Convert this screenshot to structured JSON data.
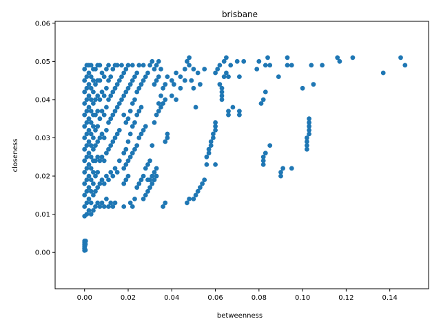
{
  "chart_data": {
    "type": "scatter",
    "title": "brisbane",
    "xlabel": "betweenness",
    "ylabel": "closeness",
    "xlim": [
      -0.0135,
      0.1578
    ],
    "ylim": [
      -0.0095,
      0.0605
    ],
    "xticks": [
      0.0,
      0.02,
      0.04,
      0.06,
      0.08,
      0.1,
      0.12,
      0.14
    ],
    "xtick_labels": [
      "0.00",
      "0.02",
      "0.04",
      "0.06",
      "0.08",
      "0.10",
      "0.12",
      "0.14"
    ],
    "yticks": [
      0.0,
      0.01,
      0.02,
      0.03,
      0.04,
      0.05,
      0.06
    ],
    "ytick_labels": [
      "0.00",
      "0.01",
      "0.02",
      "0.03",
      "0.04",
      "0.05",
      "0.06"
    ],
    "grid": false,
    "legend": false,
    "marker_color": "#1f77b4",
    "points": [
      [
        0.0,
        0.0005
      ],
      [
        0.0,
        0.001
      ],
      [
        0.0,
        0.0015
      ],
      [
        0.0,
        0.002
      ],
      [
        0.0,
        0.0025
      ],
      [
        0.0,
        0.003
      ],
      [
        0.0002,
        0.0008
      ],
      [
        0.0002,
        0.0018
      ],
      [
        0.0002,
        0.0028
      ],
      [
        0.0004,
        0.0006
      ],
      [
        0.0004,
        0.0022
      ],
      [
        0.0005,
        0.003
      ],
      [
        0.0,
        0.0095
      ],
      [
        0.0,
        0.012
      ],
      [
        0.0,
        0.015
      ],
      [
        0.0,
        0.018
      ],
      [
        0.0,
        0.021
      ],
      [
        0.0,
        0.024
      ],
      [
        0.0,
        0.027
      ],
      [
        0.0,
        0.03
      ],
      [
        0.0,
        0.033
      ],
      [
        0.0,
        0.036
      ],
      [
        0.0,
        0.039
      ],
      [
        0.0,
        0.042
      ],
      [
        0.0,
        0.045
      ],
      [
        0.0,
        0.048
      ],
      [
        0.001,
        0.01
      ],
      [
        0.001,
        0.013
      ],
      [
        0.001,
        0.016
      ],
      [
        0.001,
        0.019
      ],
      [
        0.001,
        0.022
      ],
      [
        0.001,
        0.025
      ],
      [
        0.001,
        0.028
      ],
      [
        0.001,
        0.031
      ],
      [
        0.001,
        0.034
      ],
      [
        0.001,
        0.037
      ],
      [
        0.001,
        0.04
      ],
      [
        0.001,
        0.043
      ],
      [
        0.001,
        0.046
      ],
      [
        0.001,
        0.049
      ],
      [
        0.002,
        0.011
      ],
      [
        0.002,
        0.014
      ],
      [
        0.002,
        0.017
      ],
      [
        0.002,
        0.02
      ],
      [
        0.002,
        0.023
      ],
      [
        0.002,
        0.026
      ],
      [
        0.002,
        0.029
      ],
      [
        0.002,
        0.032
      ],
      [
        0.002,
        0.035
      ],
      [
        0.002,
        0.038
      ],
      [
        0.002,
        0.041
      ],
      [
        0.002,
        0.044
      ],
      [
        0.002,
        0.047
      ],
      [
        0.002,
        0.049
      ],
      [
        0.003,
        0.01
      ],
      [
        0.003,
        0.013
      ],
      [
        0.003,
        0.016
      ],
      [
        0.003,
        0.019
      ],
      [
        0.003,
        0.022
      ],
      [
        0.003,
        0.025
      ],
      [
        0.003,
        0.028
      ],
      [
        0.003,
        0.031
      ],
      [
        0.003,
        0.034
      ],
      [
        0.003,
        0.037
      ],
      [
        0.003,
        0.04
      ],
      [
        0.003,
        0.043
      ],
      [
        0.003,
        0.046
      ],
      [
        0.003,
        0.049
      ],
      [
        0.004,
        0.011
      ],
      [
        0.004,
        0.015
      ],
      [
        0.004,
        0.018
      ],
      [
        0.004,
        0.021
      ],
      [
        0.004,
        0.024
      ],
      [
        0.004,
        0.027
      ],
      [
        0.004,
        0.03
      ],
      [
        0.004,
        0.033
      ],
      [
        0.004,
        0.036
      ],
      [
        0.004,
        0.039
      ],
      [
        0.004,
        0.042
      ],
      [
        0.004,
        0.045
      ],
      [
        0.004,
        0.048
      ],
      [
        0.005,
        0.012
      ],
      [
        0.005,
        0.016
      ],
      [
        0.005,
        0.02
      ],
      [
        0.005,
        0.024
      ],
      [
        0.005,
        0.028
      ],
      [
        0.005,
        0.032
      ],
      [
        0.005,
        0.036
      ],
      [
        0.005,
        0.04
      ],
      [
        0.005,
        0.044
      ],
      [
        0.005,
        0.048
      ],
      [
        0.006,
        0.013
      ],
      [
        0.006,
        0.017
      ],
      [
        0.006,
        0.021
      ],
      [
        0.006,
        0.025
      ],
      [
        0.006,
        0.029
      ],
      [
        0.006,
        0.033
      ],
      [
        0.006,
        0.037
      ],
      [
        0.006,
        0.041
      ],
      [
        0.006,
        0.045
      ],
      [
        0.006,
        0.049
      ],
      [
        0.007,
        0.012
      ],
      [
        0.007,
        0.018
      ],
      [
        0.007,
        0.024
      ],
      [
        0.007,
        0.03
      ],
      [
        0.007,
        0.035
      ],
      [
        0.007,
        0.04
      ],
      [
        0.007,
        0.045
      ],
      [
        0.007,
        0.049
      ],
      [
        0.008,
        0.013
      ],
      [
        0.008,
        0.019
      ],
      [
        0.008,
        0.025
      ],
      [
        0.008,
        0.031
      ],
      [
        0.008,
        0.037
      ],
      [
        0.008,
        0.042
      ],
      [
        0.008,
        0.047
      ],
      [
        0.009,
        0.012
      ],
      [
        0.009,
        0.018
      ],
      [
        0.009,
        0.024
      ],
      [
        0.009,
        0.03
      ],
      [
        0.009,
        0.036
      ],
      [
        0.009,
        0.041
      ],
      [
        0.009,
        0.046
      ],
      [
        0.01,
        0.014
      ],
      [
        0.01,
        0.02
      ],
      [
        0.01,
        0.026
      ],
      [
        0.01,
        0.032
      ],
      [
        0.01,
        0.038
      ],
      [
        0.01,
        0.043
      ],
      [
        0.01,
        0.048
      ],
      [
        0.011,
        0.012
      ],
      [
        0.011,
        0.019
      ],
      [
        0.011,
        0.027
      ],
      [
        0.011,
        0.034
      ],
      [
        0.011,
        0.04
      ],
      [
        0.011,
        0.045
      ],
      [
        0.011,
        0.049
      ],
      [
        0.012,
        0.013
      ],
      [
        0.012,
        0.021
      ],
      [
        0.012,
        0.028
      ],
      [
        0.012,
        0.035
      ],
      [
        0.012,
        0.041
      ],
      [
        0.012,
        0.046
      ],
      [
        0.013,
        0.012
      ],
      [
        0.013,
        0.02
      ],
      [
        0.013,
        0.029
      ],
      [
        0.013,
        0.036
      ],
      [
        0.013,
        0.042
      ],
      [
        0.013,
        0.048
      ],
      [
        0.014,
        0.013
      ],
      [
        0.014,
        0.022
      ],
      [
        0.014,
        0.03
      ],
      [
        0.014,
        0.037
      ],
      [
        0.014,
        0.043
      ],
      [
        0.014,
        0.049
      ],
      [
        0.015,
        0.021
      ],
      [
        0.015,
        0.031
      ],
      [
        0.015,
        0.038
      ],
      [
        0.015,
        0.044
      ],
      [
        0.015,
        0.049
      ],
      [
        0.016,
        0.024
      ],
      [
        0.016,
        0.032
      ],
      [
        0.016,
        0.039
      ],
      [
        0.016,
        0.045
      ],
      [
        0.017,
        0.04
      ],
      [
        0.017,
        0.046
      ],
      [
        0.017,
        0.049
      ],
      [
        0.018,
        0.012
      ],
      [
        0.018,
        0.018
      ],
      [
        0.018,
        0.022
      ],
      [
        0.018,
        0.026
      ],
      [
        0.018,
        0.036
      ],
      [
        0.018,
        0.041
      ],
      [
        0.018,
        0.047
      ],
      [
        0.019,
        0.019
      ],
      [
        0.019,
        0.023
      ],
      [
        0.019,
        0.027
      ],
      [
        0.019,
        0.034
      ],
      [
        0.019,
        0.042
      ],
      [
        0.019,
        0.048
      ],
      [
        0.02,
        0.02
      ],
      [
        0.02,
        0.024
      ],
      [
        0.02,
        0.029
      ],
      [
        0.02,
        0.035
      ],
      [
        0.02,
        0.043
      ],
      [
        0.02,
        0.049
      ],
      [
        0.021,
        0.013
      ],
      [
        0.021,
        0.025
      ],
      [
        0.021,
        0.031
      ],
      [
        0.021,
        0.037
      ],
      [
        0.021,
        0.044
      ],
      [
        0.022,
        0.012
      ],
      [
        0.022,
        0.026
      ],
      [
        0.022,
        0.033
      ],
      [
        0.022,
        0.039
      ],
      [
        0.022,
        0.045
      ],
      [
        0.022,
        0.049
      ],
      [
        0.023,
        0.014
      ],
      [
        0.023,
        0.027
      ],
      [
        0.023,
        0.034
      ],
      [
        0.023,
        0.04
      ],
      [
        0.023,
        0.046
      ],
      [
        0.024,
        0.017
      ],
      [
        0.024,
        0.028
      ],
      [
        0.024,
        0.036
      ],
      [
        0.024,
        0.042
      ],
      [
        0.024,
        0.047
      ],
      [
        0.025,
        0.018
      ],
      [
        0.025,
        0.03
      ],
      [
        0.025,
        0.037
      ],
      [
        0.025,
        0.043
      ],
      [
        0.025,
        0.049
      ],
      [
        0.026,
        0.019
      ],
      [
        0.026,
        0.031
      ],
      [
        0.026,
        0.038
      ],
      [
        0.026,
        0.044
      ],
      [
        0.027,
        0.014
      ],
      [
        0.027,
        0.02
      ],
      [
        0.027,
        0.032
      ],
      [
        0.027,
        0.045
      ],
      [
        0.027,
        0.049
      ],
      [
        0.028,
        0.015
      ],
      [
        0.028,
        0.022
      ],
      [
        0.028,
        0.033
      ],
      [
        0.028,
        0.046
      ],
      [
        0.029,
        0.016
      ],
      [
        0.029,
        0.023
      ],
      [
        0.029,
        0.019
      ],
      [
        0.029,
        0.047
      ],
      [
        0.03,
        0.017
      ],
      [
        0.03,
        0.024
      ],
      [
        0.03,
        0.019
      ],
      [
        0.03,
        0.049
      ],
      [
        0.031,
        0.018
      ],
      [
        0.031,
        0.02
      ],
      [
        0.031,
        0.028
      ],
      [
        0.031,
        0.05
      ],
      [
        0.032,
        0.019
      ],
      [
        0.032,
        0.021
      ],
      [
        0.032,
        0.034
      ],
      [
        0.032,
        0.044
      ],
      [
        0.032,
        0.048
      ],
      [
        0.033,
        0.02
      ],
      [
        0.033,
        0.022
      ],
      [
        0.033,
        0.036
      ],
      [
        0.033,
        0.045
      ],
      [
        0.033,
        0.049
      ],
      [
        0.034,
        0.037
      ],
      [
        0.034,
        0.039
      ],
      [
        0.034,
        0.046
      ],
      [
        0.034,
        0.05
      ],
      [
        0.035,
        0.038
      ],
      [
        0.035,
        0.041
      ],
      [
        0.035,
        0.048
      ],
      [
        0.036,
        0.012
      ],
      [
        0.036,
        0.039
      ],
      [
        0.036,
        0.043
      ],
      [
        0.037,
        0.013
      ],
      [
        0.037,
        0.029
      ],
      [
        0.037,
        0.04
      ],
      [
        0.037,
        0.044
      ],
      [
        0.038,
        0.03
      ],
      [
        0.038,
        0.031
      ],
      [
        0.038,
        0.046
      ],
      [
        0.04,
        0.041
      ],
      [
        0.04,
        0.045
      ],
      [
        0.041,
        0.044
      ],
      [
        0.042,
        0.047
      ],
      [
        0.042,
        0.04
      ],
      [
        0.044,
        0.043
      ],
      [
        0.044,
        0.046
      ],
      [
        0.046,
        0.048
      ],
      [
        0.046,
        0.045
      ],
      [
        0.047,
        0.013
      ],
      [
        0.047,
        0.05
      ],
      [
        0.048,
        0.014
      ],
      [
        0.048,
        0.049
      ],
      [
        0.048,
        0.051
      ],
      [
        0.049,
        0.045
      ],
      [
        0.05,
        0.014
      ],
      [
        0.05,
        0.048
      ],
      [
        0.05,
        0.043
      ],
      [
        0.051,
        0.015
      ],
      [
        0.051,
        0.038
      ],
      [
        0.052,
        0.016
      ],
      [
        0.052,
        0.047
      ],
      [
        0.053,
        0.017
      ],
      [
        0.053,
        0.044
      ],
      [
        0.054,
        0.018
      ],
      [
        0.055,
        0.019
      ],
      [
        0.055,
        0.048
      ],
      [
        0.056,
        0.023
      ],
      [
        0.056,
        0.025
      ],
      [
        0.057,
        0.026
      ],
      [
        0.057,
        0.027
      ],
      [
        0.058,
        0.028
      ],
      [
        0.058,
        0.029
      ],
      [
        0.059,
        0.03
      ],
      [
        0.059,
        0.031
      ],
      [
        0.06,
        0.032
      ],
      [
        0.06,
        0.033
      ],
      [
        0.06,
        0.034
      ],
      [
        0.06,
        0.047
      ],
      [
        0.06,
        0.023
      ],
      [
        0.061,
        0.048
      ],
      [
        0.062,
        0.049
      ],
      [
        0.062,
        0.044
      ],
      [
        0.063,
        0.043
      ],
      [
        0.063,
        0.042
      ],
      [
        0.063,
        0.041
      ],
      [
        0.063,
        0.04
      ],
      [
        0.064,
        0.046
      ],
      [
        0.064,
        0.05
      ],
      [
        0.065,
        0.047
      ],
      [
        0.065,
        0.051
      ],
      [
        0.066,
        0.036
      ],
      [
        0.066,
        0.037
      ],
      [
        0.066,
        0.046
      ],
      [
        0.067,
        0.049
      ],
      [
        0.068,
        0.038
      ],
      [
        0.07,
        0.05
      ],
      [
        0.071,
        0.036
      ],
      [
        0.071,
        0.037
      ],
      [
        0.071,
        0.046
      ],
      [
        0.073,
        0.05
      ],
      [
        0.079,
        0.048
      ],
      [
        0.08,
        0.05
      ],
      [
        0.081,
        0.039
      ],
      [
        0.082,
        0.04
      ],
      [
        0.082,
        0.023
      ],
      [
        0.082,
        0.024
      ],
      [
        0.082,
        0.025
      ],
      [
        0.083,
        0.026
      ],
      [
        0.083,
        0.042
      ],
      [
        0.083,
        0.049
      ],
      [
        0.084,
        0.051
      ],
      [
        0.085,
        0.049
      ],
      [
        0.085,
        0.028
      ],
      [
        0.089,
        0.046
      ],
      [
        0.09,
        0.02
      ],
      [
        0.09,
        0.021
      ],
      [
        0.091,
        0.022
      ],
      [
        0.093,
        0.049
      ],
      [
        0.093,
        0.051
      ],
      [
        0.095,
        0.022
      ],
      [
        0.095,
        0.049
      ],
      [
        0.1,
        0.043
      ],
      [
        0.102,
        0.027
      ],
      [
        0.102,
        0.028
      ],
      [
        0.102,
        0.029
      ],
      [
        0.102,
        0.03
      ],
      [
        0.103,
        0.031
      ],
      [
        0.103,
        0.032
      ],
      [
        0.103,
        0.033
      ],
      [
        0.103,
        0.034
      ],
      [
        0.103,
        0.035
      ],
      [
        0.104,
        0.049
      ],
      [
        0.105,
        0.044
      ],
      [
        0.109,
        0.049
      ],
      [
        0.116,
        0.051
      ],
      [
        0.117,
        0.05
      ],
      [
        0.123,
        0.051
      ],
      [
        0.137,
        0.047
      ],
      [
        0.145,
        0.051
      ],
      [
        0.147,
        0.049
      ]
    ]
  }
}
